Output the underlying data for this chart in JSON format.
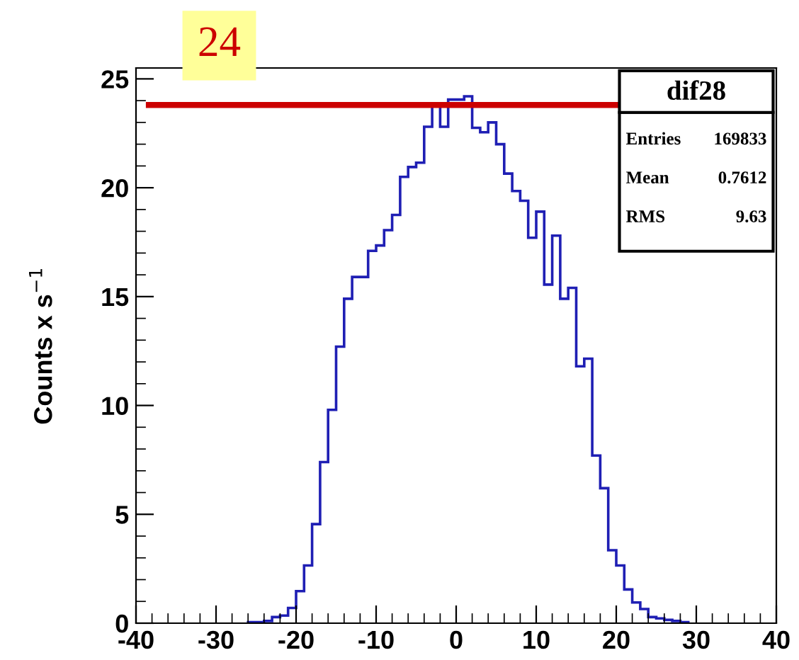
{
  "chart_data": {
    "type": "histogram",
    "ylabel": "Counts x s$^{−1}$",
    "bins": [
      -26,
      -25,
      -24,
      -23,
      -22,
      -21,
      -20,
      -19,
      -18,
      -17,
      -16,
      -15,
      -14,
      -13,
      -12,
      -11,
      -10,
      -9,
      -8,
      -7,
      -6,
      -5,
      -4,
      -3,
      -2,
      -1,
      0,
      1,
      2,
      3,
      4,
      5,
      6,
      7,
      8,
      9,
      10,
      11,
      12,
      13,
      14,
      15,
      16,
      17,
      18,
      19,
      20,
      21,
      22,
      23,
      24,
      25,
      26,
      27,
      28,
      29
    ],
    "values": [
      0.05,
      0.05,
      0.1,
      0.28,
      0.35,
      0.7,
      1.47,
      2.65,
      4.55,
      7.4,
      9.8,
      12.7,
      14.9,
      15.9,
      15.9,
      17.1,
      17.35,
      18.05,
      18.75,
      20.5,
      20.95,
      21.15,
      22.8,
      23.8,
      22.8,
      24.05,
      24.05,
      24.2,
      22.75,
      22.55,
      23.0,
      22.0,
      20.65,
      19.85,
      19.4,
      17.7,
      18.9,
      15.55,
      17.8,
      14.9,
      15.4,
      11.8,
      12.15,
      7.7,
      6.2,
      3.35,
      2.65,
      1.55,
      0.95,
      0.65,
      0.28,
      0.22,
      0.15,
      0.1,
      0.05
    ],
    "color": "#1f1fb4",
    "xlim": [
      -40,
      40
    ],
    "ylim": [
      0,
      25.5
    ],
    "xticks": [
      -40,
      -30,
      -20,
      -10,
      0,
      10,
      20,
      30,
      40
    ],
    "yticks": [
      0,
      5,
      10,
      15,
      20,
      25
    ],
    "grid": false,
    "ref_lines": [
      {
        "axis": "y",
        "value": 23.8,
        "label": "24",
        "color": "#cc0000"
      }
    ],
    "annotations": [
      "dif28",
      "Entries",
      "169833",
      "Mean",
      "0.7612",
      "RMS",
      "9.63"
    ]
  }
}
